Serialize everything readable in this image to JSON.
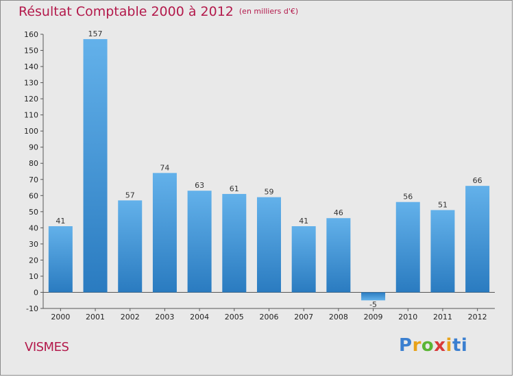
{
  "title": "Résultat Comptable 2000 à 2012",
  "subtitle": "(en milliers d'€)",
  "place": "VISMES",
  "logo": [
    "P",
    "r",
    "o",
    "x",
    "i",
    "ti"
  ],
  "colors": {
    "title": "#b3194b",
    "bar_light": "#63b1ea",
    "bar_dark": "#2a7bc0",
    "background": "#e9e9e9"
  },
  "chart_data": {
    "type": "bar",
    "categories": [
      "2000",
      "2001",
      "2002",
      "2003",
      "2004",
      "2005",
      "2006",
      "2007",
      "2008",
      "2009",
      "2010",
      "2011",
      "2012"
    ],
    "values": [
      41,
      157,
      57,
      74,
      63,
      61,
      59,
      41,
      46,
      -5,
      56,
      51,
      66
    ],
    "data_labels": [
      "41",
      "157",
      "57",
      "74",
      "63",
      "61",
      "59",
      "41",
      "46",
      "-5",
      "56",
      "51",
      "66"
    ],
    "yticks": [
      -10,
      0,
      10,
      20,
      30,
      40,
      50,
      60,
      70,
      80,
      90,
      100,
      110,
      120,
      130,
      140,
      150,
      160
    ],
    "ylim": [
      -10,
      160
    ],
    "grid": false
  }
}
